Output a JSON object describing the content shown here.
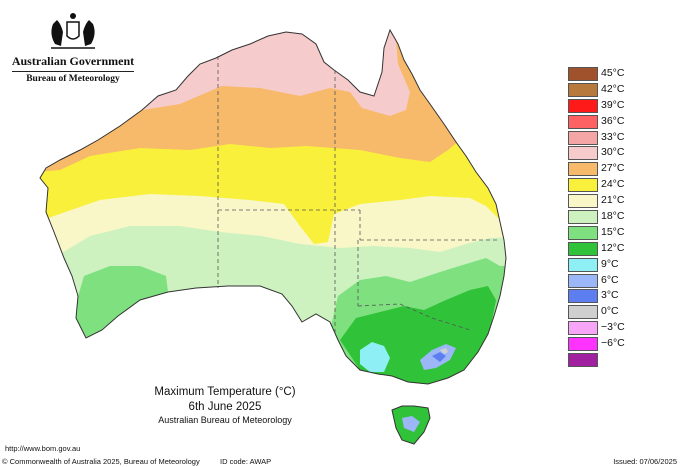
{
  "branding": {
    "government": "Australian Government",
    "bureau": "Bureau of Meteorology"
  },
  "map": {
    "title": "Maximum Temperature (°C)",
    "date": "6th June 2025",
    "source": "Australian Bureau of Meteorology",
    "colors": {
      "ocean": "#ffffff",
      "coast": "#333333",
      "state_border": "#555555"
    }
  },
  "legend": [
    {
      "label": "45°C",
      "color": "#a0522d"
    },
    {
      "label": "42°C",
      "color": "#b87a3c"
    },
    {
      "label": "39°C",
      "color": "#ff1a1a"
    },
    {
      "label": "36°C",
      "color": "#ff6262"
    },
    {
      "label": "33°C",
      "color": "#f4a6a6"
    },
    {
      "label": "30°C",
      "color": "#f6cbcb"
    },
    {
      "label": "27°C",
      "color": "#f7b96a"
    },
    {
      "label": "24°C",
      "color": "#f8f03a"
    },
    {
      "label": "21°C",
      "color": "#f9f7c7"
    },
    {
      "label": "18°C",
      "color": "#cdf2c0"
    },
    {
      "label": "15°C",
      "color": "#7fe07f"
    },
    {
      "label": "12°C",
      "color": "#30c238"
    },
    {
      "label": "9°C",
      "color": "#8ef0f5"
    },
    {
      "label": "6°C",
      "color": "#9bb7f7"
    },
    {
      "label": "3°C",
      "color": "#5c7ef0"
    },
    {
      "label": "0°C",
      "color": "#cfcfcf"
    },
    {
      "label": "−3°C",
      "color": "#f7a6f7"
    },
    {
      "label": "−6°C",
      "color": "#ff33ff"
    },
    {
      "label": "",
      "color": "#a020a0"
    }
  ],
  "footer": {
    "url": "http://www.bom.gov.au",
    "copyright": "© Commonwealth of Australia 2025, Bureau of Meteorology",
    "id_code": "ID code: AWAP",
    "issued": "Issued: 07/06/2025"
  }
}
